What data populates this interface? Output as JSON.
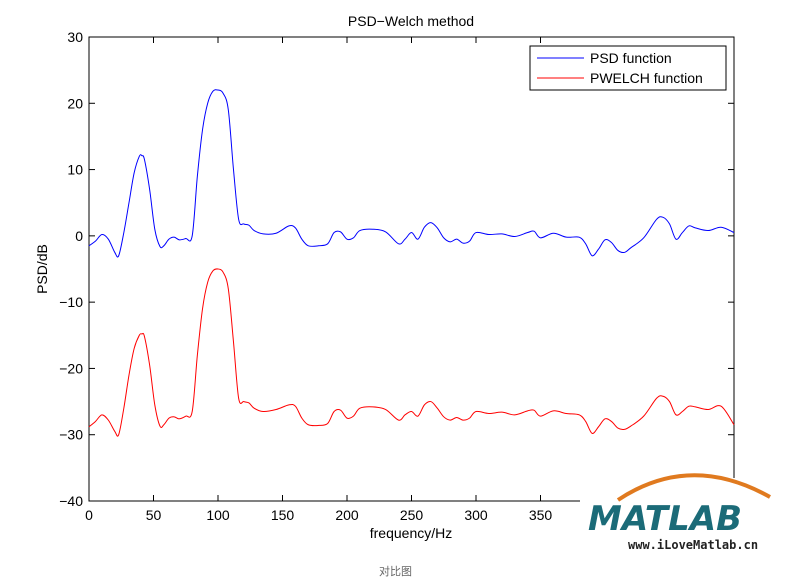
{
  "chart_data": {
    "type": "line",
    "title": "PSD−Welch method",
    "xlabel": "frequency/Hz",
    "ylabel": "PSD/dB",
    "xlim": [
      0,
      500
    ],
    "ylim": [
      -40,
      30
    ],
    "xticks": [
      0,
      50,
      100,
      150,
      200,
      250,
      300,
      350
    ],
    "xtick_labels": [
      "0",
      "50",
      "100",
      "150",
      "200",
      "250",
      "300",
      "350"
    ],
    "yticks": [
      30,
      20,
      10,
      0,
      -10,
      -20,
      -30,
      -40
    ],
    "ytick_labels": [
      "30",
      "20",
      "10",
      "0",
      "−10",
      "−20",
      "−30",
      "−40"
    ],
    "grid": false,
    "legend_position": "top-right",
    "series": [
      {
        "name": "PSD function",
        "color": "#0000ff",
        "x": [
          0,
          5,
          10,
          15,
          20,
          23,
          27,
          31,
          35,
          39,
          41,
          43,
          47,
          51,
          55,
          58,
          62,
          66,
          70,
          75,
          80,
          84,
          88,
          92,
          96,
          100,
          104,
          108,
          112,
          116,
          120,
          124,
          128,
          135,
          145,
          155,
          160,
          165,
          170,
          178,
          185,
          190,
          195,
          200,
          205,
          210,
          220,
          230,
          240,
          245,
          250,
          255,
          260,
          265,
          270,
          275,
          280,
          285,
          290,
          295,
          300,
          310,
          320,
          330,
          340,
          345,
          350,
          360,
          370,
          380,
          385,
          390,
          395,
          400,
          405,
          410,
          415,
          420,
          430,
          440,
          445,
          450,
          455,
          460,
          465,
          470,
          480,
          490,
          500
        ],
        "y": [
          -1.5,
          -0.8,
          0.2,
          -0.5,
          -2.5,
          -3.0,
          0.5,
          5.0,
          9.5,
          12.0,
          12.1,
          11.5,
          7.0,
          1.0,
          -1.6,
          -1.5,
          -0.5,
          -0.2,
          -0.6,
          -0.4,
          0.0,
          9.0,
          16.0,
          20.0,
          21.8,
          22.0,
          21.5,
          19.0,
          10.0,
          2.5,
          1.8,
          1.6,
          0.8,
          0.3,
          0.4,
          1.5,
          1.2,
          -0.5,
          -1.5,
          -1.5,
          -1.2,
          0.5,
          0.6,
          -0.5,
          -0.3,
          0.8,
          1.0,
          0.6,
          -1.2,
          -0.5,
          0.5,
          -0.5,
          1.3,
          2.0,
          1.2,
          -0.3,
          -0.9,
          -0.5,
          -1.1,
          -0.8,
          0.5,
          0.2,
          0.3,
          -0.1,
          0.5,
          0.7,
          -0.3,
          0.4,
          -0.2,
          -0.2,
          -1.2,
          -3.0,
          -2.0,
          -0.6,
          -1.0,
          -2.2,
          -2.5,
          -1.8,
          -0.3,
          2.5,
          2.8,
          1.8,
          -0.5,
          0.5,
          1.5,
          1.2,
          0.8,
          1.3,
          0.5
        ]
      },
      {
        "name": "PWELCH function",
        "color": "#ff0000",
        "x": [
          0,
          5,
          10,
          15,
          20,
          23,
          27,
          31,
          35,
          39,
          41,
          43,
          47,
          51,
          55,
          58,
          62,
          66,
          70,
          75,
          80,
          84,
          88,
          92,
          96,
          100,
          104,
          108,
          112,
          116,
          120,
          124,
          128,
          135,
          145,
          155,
          160,
          165,
          170,
          178,
          185,
          190,
          195,
          200,
          205,
          210,
          220,
          230,
          240,
          245,
          250,
          255,
          260,
          265,
          270,
          275,
          280,
          285,
          290,
          295,
          300,
          310,
          320,
          330,
          340,
          345,
          350,
          360,
          370,
          380,
          385,
          390,
          395,
          400,
          405,
          410,
          415,
          420,
          430,
          440,
          445,
          450,
          455,
          460,
          465,
          470,
          480,
          490,
          500
        ],
        "y": [
          -28.8,
          -28.0,
          -27.0,
          -27.8,
          -29.5,
          -30.0,
          -26.0,
          -21.0,
          -17.0,
          -15.0,
          -14.8,
          -15.2,
          -19.5,
          -25.5,
          -28.7,
          -28.5,
          -27.5,
          -27.3,
          -27.6,
          -27.2,
          -26.5,
          -18.0,
          -11.0,
          -7.0,
          -5.3,
          -5.0,
          -5.5,
          -8.0,
          -16.0,
          -24.5,
          -25.0,
          -25.2,
          -26.0,
          -26.5,
          -26.2,
          -25.5,
          -25.7,
          -27.5,
          -28.5,
          -28.6,
          -28.3,
          -26.5,
          -26.3,
          -27.5,
          -27.2,
          -26.0,
          -25.8,
          -26.2,
          -27.8,
          -27.0,
          -26.5,
          -27.2,
          -25.5,
          -25.0,
          -26.0,
          -27.3,
          -27.8,
          -27.4,
          -27.8,
          -27.5,
          -26.5,
          -26.8,
          -26.6,
          -27.0,
          -26.4,
          -26.3,
          -27.2,
          -26.4,
          -26.8,
          -27.0,
          -28.0,
          -29.8,
          -28.8,
          -27.6,
          -28.0,
          -29.0,
          -29.2,
          -28.7,
          -27.2,
          -24.5,
          -24.2,
          -25.0,
          -27.0,
          -26.5,
          -25.7,
          -25.8,
          -26.2,
          -25.7,
          -28.5
        ]
      }
    ]
  },
  "watermark": {
    "logo": "MATLAB",
    "url": "www.iLoveMatlab.cn",
    "colors": {
      "teal": "#1b6b78",
      "arc": "#e07a1f"
    }
  },
  "caption": "对比图"
}
